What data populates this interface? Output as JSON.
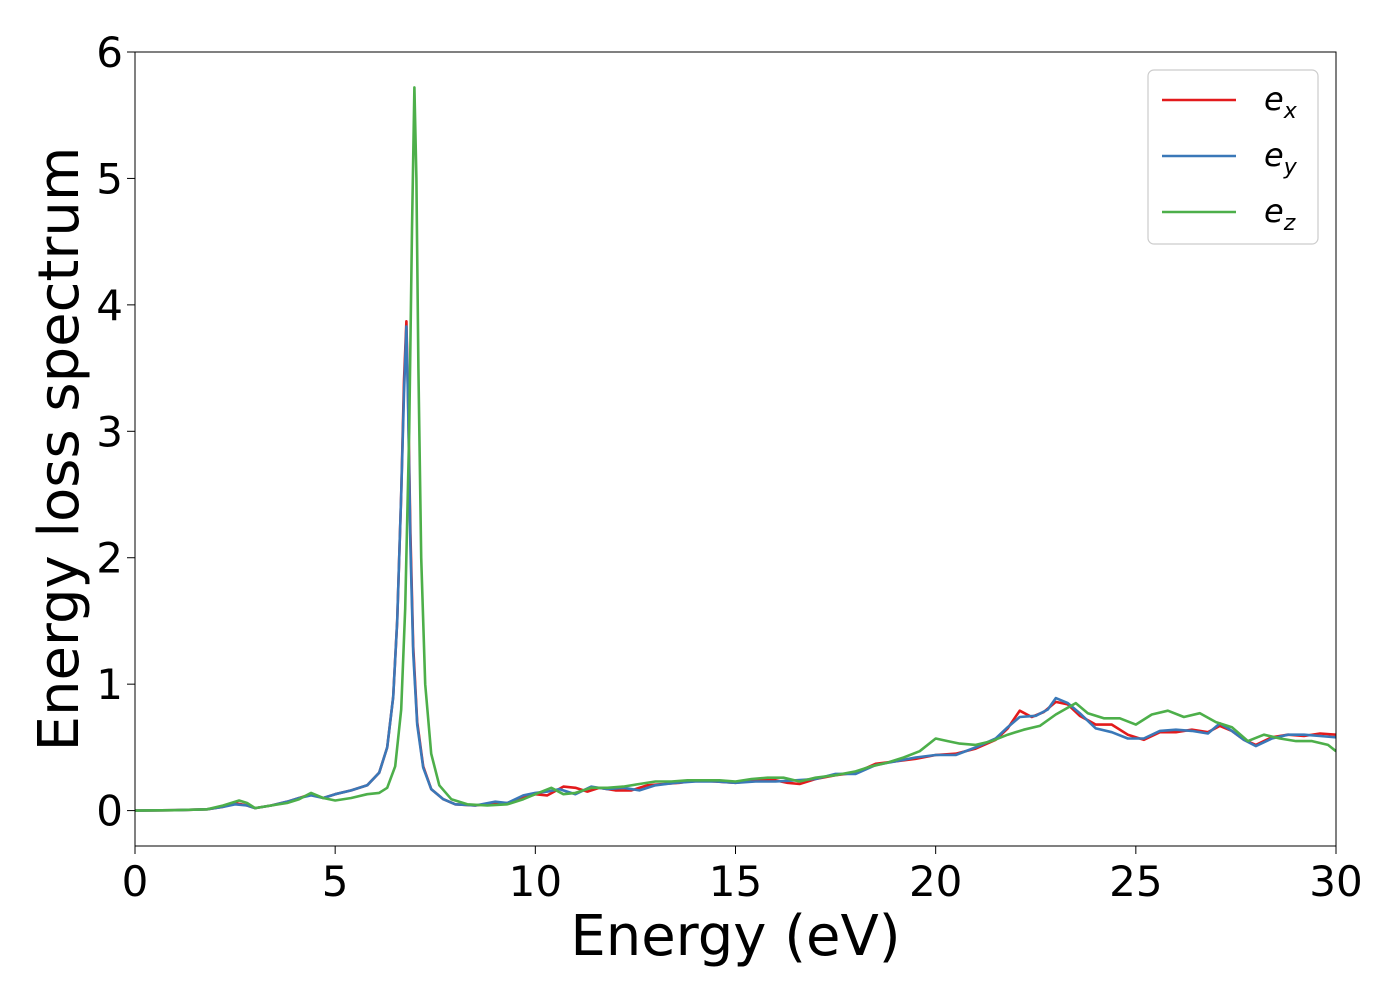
{
  "chart_data": {
    "type": "line",
    "title": "",
    "xlabel": "Energy (eV)",
    "ylabel": "Energy loss spectrum",
    "xlim": [
      0,
      30
    ],
    "ylim": [
      -0.28,
      6
    ],
    "xticks": [
      0,
      5,
      10,
      15,
      20,
      25,
      30
    ],
    "yticks": [
      0,
      1,
      2,
      3,
      4,
      5,
      6
    ],
    "grid": false,
    "legend_position": "top-right",
    "series": [
      {
        "name": "e",
        "subscript": "x",
        "color": "#e31a1c",
        "points": [
          [
            0,
            0
          ],
          [
            1,
            0.003
          ],
          [
            1.8,
            0.01
          ],
          [
            2.2,
            0.03
          ],
          [
            2.5,
            0.06
          ],
          [
            2.8,
            0.04
          ],
          [
            3.0,
            0.02
          ],
          [
            3.4,
            0.04
          ],
          [
            3.8,
            0.07
          ],
          [
            4.1,
            0.1
          ],
          [
            4.4,
            0.13
          ],
          [
            4.7,
            0.1
          ],
          [
            5.0,
            0.13
          ],
          [
            5.4,
            0.16
          ],
          [
            5.8,
            0.2
          ],
          [
            6.1,
            0.3
          ],
          [
            6.3,
            0.5
          ],
          [
            6.45,
            0.9
          ],
          [
            6.55,
            1.5
          ],
          [
            6.65,
            2.5
          ],
          [
            6.72,
            3.4
          ],
          [
            6.78,
            3.87
          ],
          [
            6.82,
            3.3
          ],
          [
            6.88,
            2.2
          ],
          [
            6.95,
            1.3
          ],
          [
            7.05,
            0.7
          ],
          [
            7.2,
            0.35
          ],
          [
            7.4,
            0.17
          ],
          [
            7.7,
            0.09
          ],
          [
            8.0,
            0.05
          ],
          [
            8.5,
            0.04
          ],
          [
            9.0,
            0.06
          ],
          [
            9.3,
            0.06
          ],
          [
            9.7,
            0.1
          ],
          [
            10.0,
            0.13
          ],
          [
            10.3,
            0.12
          ],
          [
            10.7,
            0.19
          ],
          [
            11.0,
            0.18
          ],
          [
            11.3,
            0.15
          ],
          [
            11.6,
            0.18
          ],
          [
            12.0,
            0.16
          ],
          [
            12.4,
            0.16
          ],
          [
            12.8,
            0.2
          ],
          [
            13.2,
            0.21
          ],
          [
            13.6,
            0.22
          ],
          [
            14.0,
            0.24
          ],
          [
            14.5,
            0.23
          ],
          [
            15.0,
            0.22
          ],
          [
            15.5,
            0.24
          ],
          [
            16.0,
            0.24
          ],
          [
            16.3,
            0.22
          ],
          [
            16.6,
            0.21
          ],
          [
            17.0,
            0.25
          ],
          [
            17.5,
            0.28
          ],
          [
            18.0,
            0.3
          ],
          [
            18.5,
            0.37
          ],
          [
            19.0,
            0.39
          ],
          [
            19.5,
            0.41
          ],
          [
            20.0,
            0.44
          ],
          [
            20.5,
            0.45
          ],
          [
            21.0,
            0.49
          ],
          [
            21.5,
            0.56
          ],
          [
            21.8,
            0.65
          ],
          [
            22.1,
            0.79
          ],
          [
            22.4,
            0.74
          ],
          [
            22.7,
            0.78
          ],
          [
            23.0,
            0.86
          ],
          [
            23.3,
            0.84
          ],
          [
            23.6,
            0.75
          ],
          [
            24.0,
            0.68
          ],
          [
            24.4,
            0.68
          ],
          [
            24.8,
            0.6
          ],
          [
            25.2,
            0.56
          ],
          [
            25.6,
            0.62
          ],
          [
            26.0,
            0.62
          ],
          [
            26.4,
            0.64
          ],
          [
            26.8,
            0.62
          ],
          [
            27.1,
            0.67
          ],
          [
            27.4,
            0.63
          ],
          [
            27.7,
            0.56
          ],
          [
            28.0,
            0.52
          ],
          [
            28.4,
            0.58
          ],
          [
            28.8,
            0.6
          ],
          [
            29.2,
            0.59
          ],
          [
            29.6,
            0.61
          ],
          [
            30.0,
            0.6
          ]
        ]
      },
      {
        "name": "e",
        "subscript": "y",
        "color": "#3a78b8",
        "points": [
          [
            0,
            0
          ],
          [
            1,
            0.003
          ],
          [
            1.8,
            0.01
          ],
          [
            2.2,
            0.03
          ],
          [
            2.5,
            0.05
          ],
          [
            2.8,
            0.04
          ],
          [
            3.0,
            0.02
          ],
          [
            3.4,
            0.04
          ],
          [
            3.8,
            0.07
          ],
          [
            4.1,
            0.1
          ],
          [
            4.4,
            0.12
          ],
          [
            4.7,
            0.1
          ],
          [
            5.0,
            0.13
          ],
          [
            5.4,
            0.16
          ],
          [
            5.8,
            0.2
          ],
          [
            6.1,
            0.3
          ],
          [
            6.3,
            0.5
          ],
          [
            6.45,
            0.9
          ],
          [
            6.55,
            1.5
          ],
          [
            6.65,
            2.5
          ],
          [
            6.72,
            3.3
          ],
          [
            6.78,
            3.83
          ],
          [
            6.82,
            3.25
          ],
          [
            6.88,
            2.1
          ],
          [
            6.95,
            1.25
          ],
          [
            7.05,
            0.68
          ],
          [
            7.2,
            0.34
          ],
          [
            7.4,
            0.17
          ],
          [
            7.7,
            0.09
          ],
          [
            8.0,
            0.05
          ],
          [
            8.5,
            0.04
          ],
          [
            9.0,
            0.07
          ],
          [
            9.3,
            0.06
          ],
          [
            9.7,
            0.12
          ],
          [
            10.0,
            0.14
          ],
          [
            10.3,
            0.15
          ],
          [
            10.6,
            0.17
          ],
          [
            11.0,
            0.13
          ],
          [
            11.4,
            0.19
          ],
          [
            11.8,
            0.17
          ],
          [
            12.2,
            0.18
          ],
          [
            12.6,
            0.16
          ],
          [
            13.0,
            0.2
          ],
          [
            13.5,
            0.22
          ],
          [
            14.0,
            0.23
          ],
          [
            14.5,
            0.23
          ],
          [
            15.0,
            0.22
          ],
          [
            15.5,
            0.23
          ],
          [
            16.0,
            0.23
          ],
          [
            16.5,
            0.24
          ],
          [
            17.0,
            0.25
          ],
          [
            17.5,
            0.29
          ],
          [
            18.0,
            0.29
          ],
          [
            18.5,
            0.36
          ],
          [
            19.0,
            0.39
          ],
          [
            19.5,
            0.42
          ],
          [
            20.0,
            0.44
          ],
          [
            20.5,
            0.44
          ],
          [
            21.0,
            0.5
          ],
          [
            21.5,
            0.57
          ],
          [
            21.8,
            0.66
          ],
          [
            22.1,
            0.74
          ],
          [
            22.5,
            0.75
          ],
          [
            22.8,
            0.8
          ],
          [
            23.0,
            0.89
          ],
          [
            23.3,
            0.85
          ],
          [
            23.6,
            0.77
          ],
          [
            24.0,
            0.65
          ],
          [
            24.4,
            0.62
          ],
          [
            24.8,
            0.57
          ],
          [
            25.2,
            0.57
          ],
          [
            25.6,
            0.63
          ],
          [
            26.0,
            0.64
          ],
          [
            26.4,
            0.63
          ],
          [
            26.8,
            0.61
          ],
          [
            27.1,
            0.69
          ],
          [
            27.4,
            0.63
          ],
          [
            27.7,
            0.56
          ],
          [
            28.0,
            0.51
          ],
          [
            28.4,
            0.57
          ],
          [
            28.8,
            0.6
          ],
          [
            29.2,
            0.6
          ],
          [
            29.6,
            0.59
          ],
          [
            30.0,
            0.58
          ]
        ]
      },
      {
        "name": "e",
        "subscript": "z",
        "color": "#4daf4a",
        "points": [
          [
            0,
            0
          ],
          [
            1,
            0.003
          ],
          [
            1.8,
            0.01
          ],
          [
            2.2,
            0.04
          ],
          [
            2.6,
            0.08
          ],
          [
            2.8,
            0.06
          ],
          [
            3.0,
            0.02
          ],
          [
            3.4,
            0.04
          ],
          [
            3.8,
            0.06
          ],
          [
            4.1,
            0.09
          ],
          [
            4.4,
            0.14
          ],
          [
            4.7,
            0.1
          ],
          [
            5.0,
            0.08
          ],
          [
            5.4,
            0.1
          ],
          [
            5.8,
            0.13
          ],
          [
            6.1,
            0.14
          ],
          [
            6.3,
            0.18
          ],
          [
            6.5,
            0.35
          ],
          [
            6.65,
            0.8
          ],
          [
            6.75,
            1.6
          ],
          [
            6.85,
            3.0
          ],
          [
            6.92,
            4.6
          ],
          [
            6.98,
            5.72
          ],
          [
            7.03,
            5.0
          ],
          [
            7.08,
            3.5
          ],
          [
            7.15,
            2.0
          ],
          [
            7.25,
            1.0
          ],
          [
            7.4,
            0.45
          ],
          [
            7.6,
            0.2
          ],
          [
            7.9,
            0.09
          ],
          [
            8.3,
            0.05
          ],
          [
            8.8,
            0.04
          ],
          [
            9.3,
            0.05
          ],
          [
            9.7,
            0.09
          ],
          [
            10.0,
            0.13
          ],
          [
            10.4,
            0.18
          ],
          [
            10.7,
            0.13
          ],
          [
            11.0,
            0.14
          ],
          [
            11.4,
            0.18
          ],
          [
            11.8,
            0.18
          ],
          [
            12.2,
            0.19
          ],
          [
            12.6,
            0.21
          ],
          [
            13.0,
            0.23
          ],
          [
            13.4,
            0.23
          ],
          [
            13.8,
            0.24
          ],
          [
            14.2,
            0.24
          ],
          [
            14.6,
            0.24
          ],
          [
            15.0,
            0.23
          ],
          [
            15.4,
            0.25
          ],
          [
            15.8,
            0.26
          ],
          [
            16.2,
            0.26
          ],
          [
            16.6,
            0.23
          ],
          [
            17.0,
            0.26
          ],
          [
            17.5,
            0.28
          ],
          [
            18.0,
            0.31
          ],
          [
            18.4,
            0.35
          ],
          [
            18.8,
            0.38
          ],
          [
            19.2,
            0.42
          ],
          [
            19.6,
            0.47
          ],
          [
            20.0,
            0.57
          ],
          [
            20.3,
            0.55
          ],
          [
            20.6,
            0.53
          ],
          [
            21.0,
            0.52
          ],
          [
            21.4,
            0.55
          ],
          [
            21.8,
            0.6
          ],
          [
            22.2,
            0.64
          ],
          [
            22.6,
            0.67
          ],
          [
            23.0,
            0.76
          ],
          [
            23.5,
            0.85
          ],
          [
            23.8,
            0.77
          ],
          [
            24.2,
            0.73
          ],
          [
            24.6,
            0.73
          ],
          [
            25.0,
            0.68
          ],
          [
            25.4,
            0.76
          ],
          [
            25.8,
            0.79
          ],
          [
            26.2,
            0.74
          ],
          [
            26.6,
            0.77
          ],
          [
            27.0,
            0.7
          ],
          [
            27.4,
            0.66
          ],
          [
            27.8,
            0.55
          ],
          [
            28.2,
            0.6
          ],
          [
            28.6,
            0.57
          ],
          [
            29.0,
            0.55
          ],
          [
            29.4,
            0.55
          ],
          [
            29.8,
            0.52
          ],
          [
            30.0,
            0.47
          ]
        ]
      }
    ]
  }
}
